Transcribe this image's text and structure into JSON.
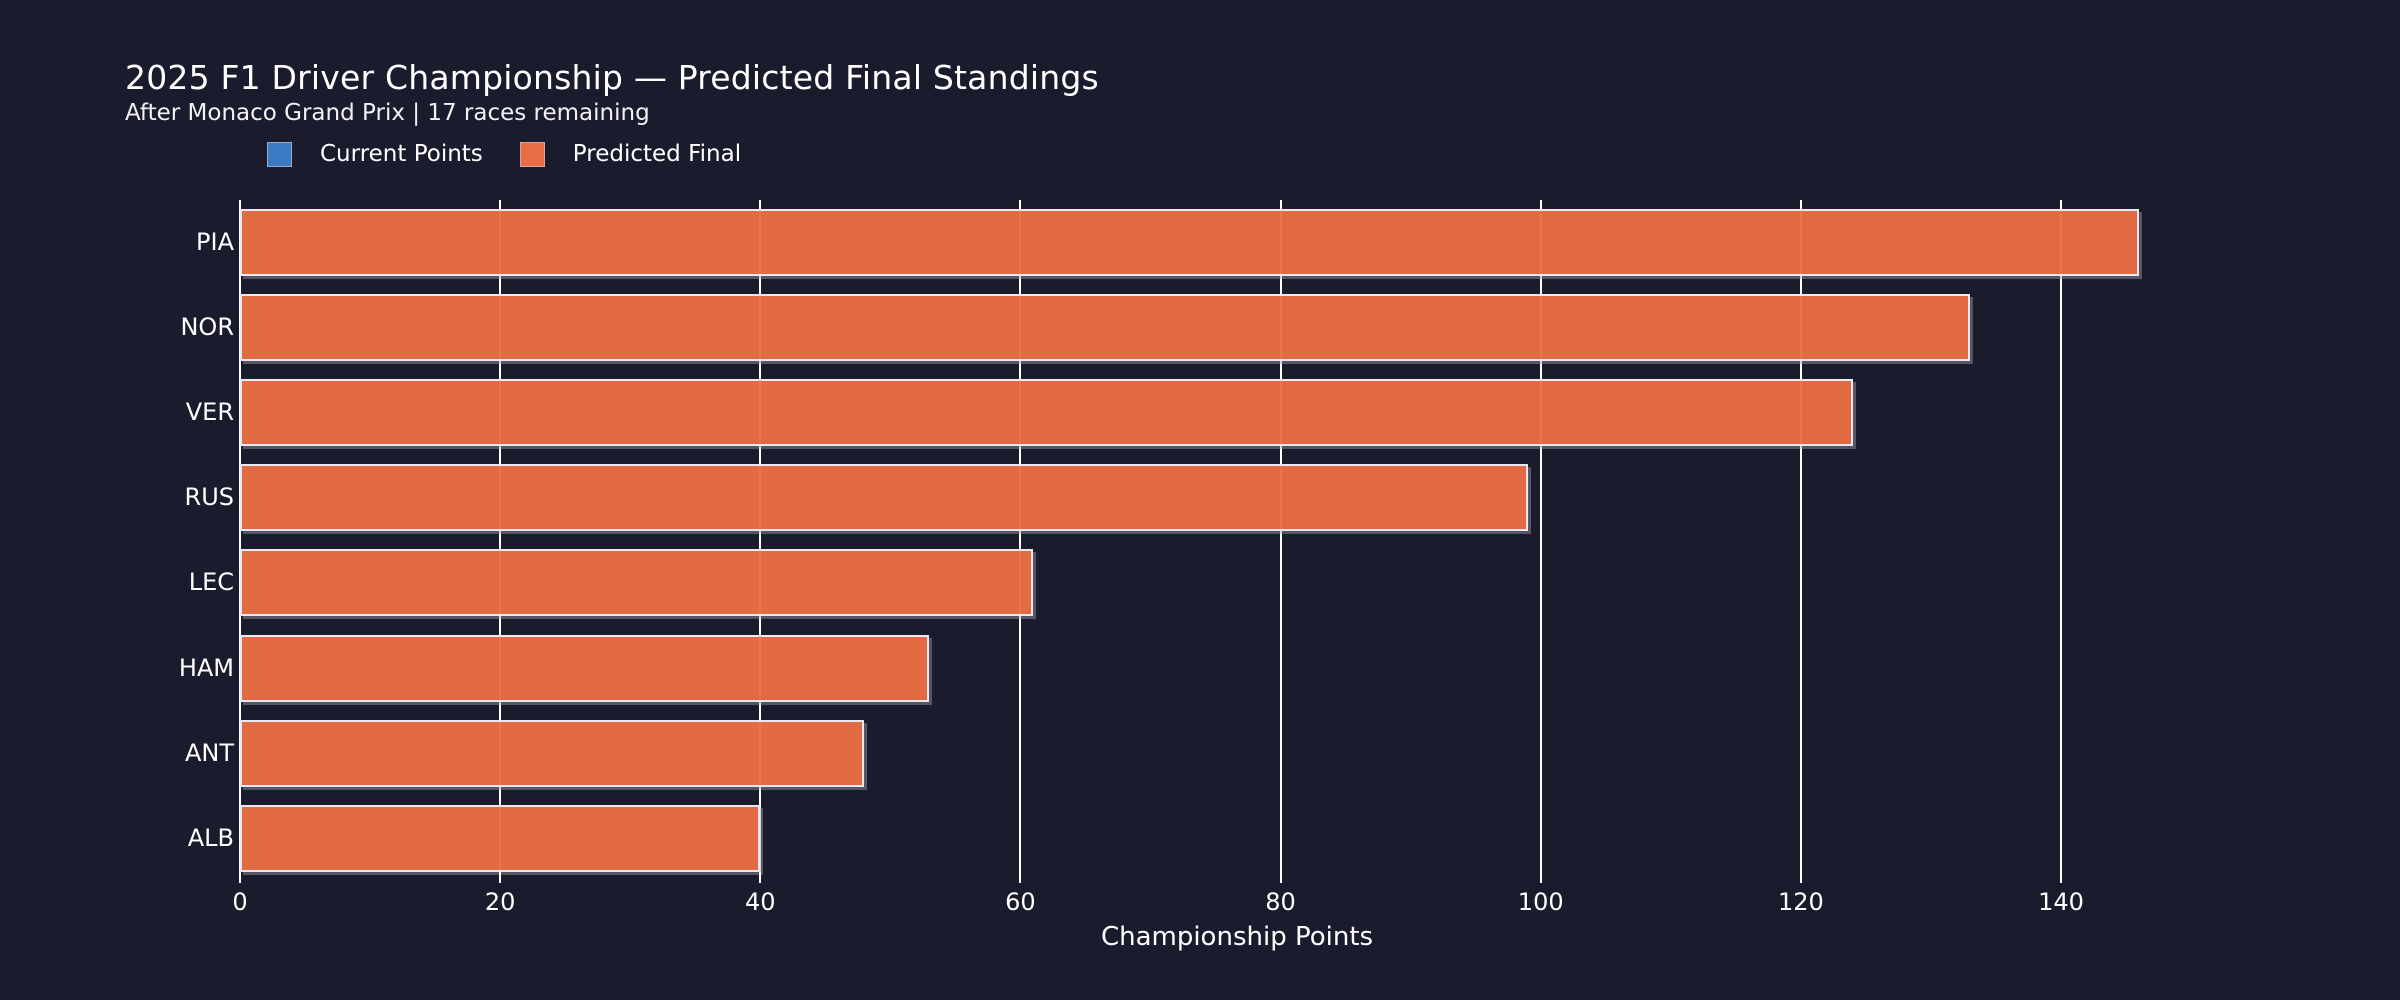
{
  "chart_data": {
    "type": "bar",
    "orientation": "horizontal",
    "title": "2025 F1 Driver Championship — Predicted Final Standings",
    "subtitle": "After Monaco Grand Prix | 17 races remaining",
    "xlabel": "Championship Points",
    "ylabel": "",
    "categories": [
      "PIA",
      "NOR",
      "VER",
      "RUS",
      "LEC",
      "HAM",
      "ANT",
      "ALB"
    ],
    "series": [
      {
        "name": "Current Points",
        "color": "#3c7ac4",
        "visible": false,
        "values": null
      },
      {
        "name": "Predicted Final",
        "color": "#ea6e45",
        "visible": true,
        "values": [
          146,
          133,
          124,
          99,
          61,
          53,
          48,
          40
        ]
      }
    ],
    "xticks": [
      0,
      20,
      40,
      60,
      80,
      100,
      120,
      140
    ],
    "xlim": [
      0,
      153.3
    ],
    "grid": true,
    "legend_position": "top-left",
    "colors": {
      "background": "#1a1b2c",
      "text": "#ffffff",
      "grid": "#ffffff",
      "bar_edge": "#e9e9f2"
    }
  }
}
